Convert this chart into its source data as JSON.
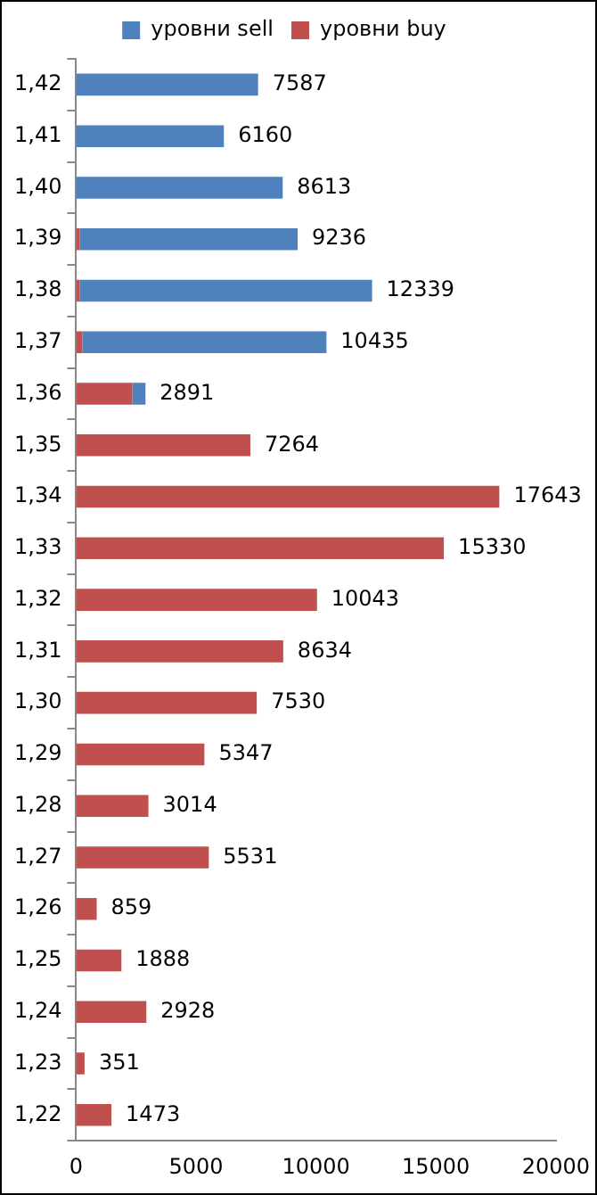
{
  "chart_data": {
    "type": "bar",
    "orientation": "horizontal",
    "stacked": true,
    "legend": "top",
    "grid": false,
    "categories": [
      "1,42",
      "1,41",
      "1,40",
      "1,39",
      "1,38",
      "1,37",
      "1,36",
      "1,35",
      "1,34",
      "1,33",
      "1,32",
      "1,31",
      "1,30",
      "1,29",
      "1,28",
      "1,27",
      "1,26",
      "1,25",
      "1,24",
      "1,23",
      "1,22"
    ],
    "series": [
      {
        "name": "уровни buy",
        "color": "#c0504d",
        "values": [
          null,
          null,
          null,
          150,
          150,
          260,
          2340,
          7264,
          17643,
          15330,
          10043,
          8634,
          7530,
          5347,
          3014,
          5531,
          859,
          1888,
          2928,
          351,
          1473
        ]
      },
      {
        "name": "уровни sell",
        "color": "#4f81bd",
        "values": [
          7587,
          6160,
          8613,
          9086,
          12189,
          10175,
          551,
          null,
          null,
          null,
          null,
          null,
          null,
          null,
          null,
          null,
          null,
          null,
          null,
          null,
          null
        ]
      }
    ],
    "totals": [
      "7587",
      "6160",
      "8613",
      "9236",
      "12339",
      "10435",
      "2891",
      "7264",
      "17643",
      "15330",
      "10043",
      "8634",
      "7530",
      "5347",
      "3014",
      "5531",
      "859",
      "1888",
      "2928",
      "351",
      "1473"
    ],
    "xlim": [
      0,
      20000
    ],
    "xticks": [
      0,
      5000,
      10000,
      15000,
      20000
    ]
  }
}
